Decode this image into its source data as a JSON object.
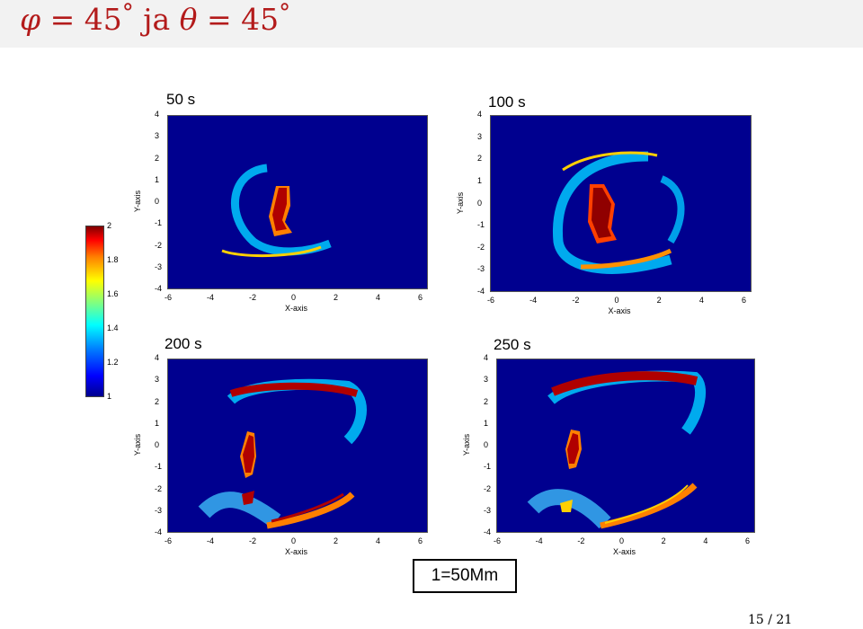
{
  "slide": {
    "title_phi": "φ",
    "title_eq1": " = 45",
    "title_deg1": "°",
    "title_ja": " ja ",
    "title_theta": "θ",
    "title_eq2": " = 45",
    "title_deg2": "°",
    "scale_label": "1=50Mm",
    "page_number": "15 / 21"
  },
  "colorbar": {
    "ticks": [
      "2",
      "1.8",
      "1.6",
      "1.4",
      "1.2",
      "1"
    ]
  },
  "panels": [
    {
      "title": "50 s"
    },
    {
      "title": "100 s"
    },
    {
      "title": "200 s"
    },
    {
      "title": "250 s"
    }
  ],
  "axes": {
    "xlabel": "X-axis",
    "ylabel": "Y-axis",
    "xticks": [
      "-6",
      "-4",
      "-2",
      "0",
      "2",
      "4",
      "6"
    ],
    "yticks": [
      "4",
      "3",
      "2",
      "1",
      "0",
      "-1",
      "-2",
      "-3",
      "-4"
    ]
  },
  "colors": {
    "title_red": "#b31b1b",
    "background_blue": "#00008f",
    "max_red": "#800000"
  }
}
